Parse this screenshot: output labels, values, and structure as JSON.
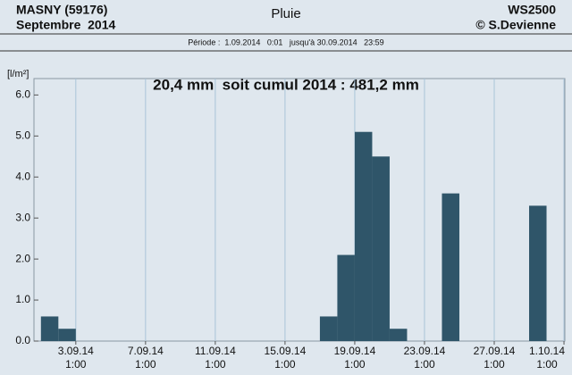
{
  "chart_data": {
    "type": "bar",
    "header": {
      "station": "MASNY (59176)",
      "month": "Septembre  2014",
      "title": "Pluie",
      "device": "WS2500",
      "author": "© S.Devienne"
    },
    "period": "Période :  1.09.2014   0:01   jusqu'à 30.09.2014   23:59",
    "annotation": "20,4 mm  soit cumul 2014 : 481,2 mm",
    "y_label": "[l/m²]",
    "x": [
      1,
      2,
      17,
      18,
      19,
      20,
      21,
      24,
      29
    ],
    "values": [
      0.6,
      0.3,
      0.6,
      2.1,
      5.1,
      4.5,
      0.3,
      3.6,
      3.3
    ],
    "color": "#2f5569",
    "xlim": [
      0.6,
      31.05
    ],
    "ylim": [
      0,
      6.4
    ],
    "yticks": [
      {
        "value": 0,
        "label": "0.0"
      },
      {
        "value": 1,
        "label": "1.0"
      },
      {
        "value": 2,
        "label": "2.0"
      },
      {
        "value": 3,
        "label": "3.0"
      },
      {
        "value": 4,
        "label": "4.0"
      },
      {
        "value": 5,
        "label": "5.0"
      },
      {
        "value": 6,
        "label": "6.0"
      }
    ],
    "xticks": [
      {
        "value": 3,
        "label": "3.09.14\n1:00"
      },
      {
        "value": 7,
        "label": "7.09.14\n1:00"
      },
      {
        "value": 11,
        "label": "11.09.14\n1:00"
      },
      {
        "value": 15,
        "label": "15.09.14\n1:00"
      },
      {
        "value": 19,
        "label": "19.09.14\n1:00"
      },
      {
        "value": 23,
        "label": "23.09.14\n1:00"
      },
      {
        "value": 27,
        "label": "27.09.14\n1:00"
      },
      {
        "value": 31,
        "label": "1.10.14\n1:00"
      }
    ],
    "grid": true
  }
}
